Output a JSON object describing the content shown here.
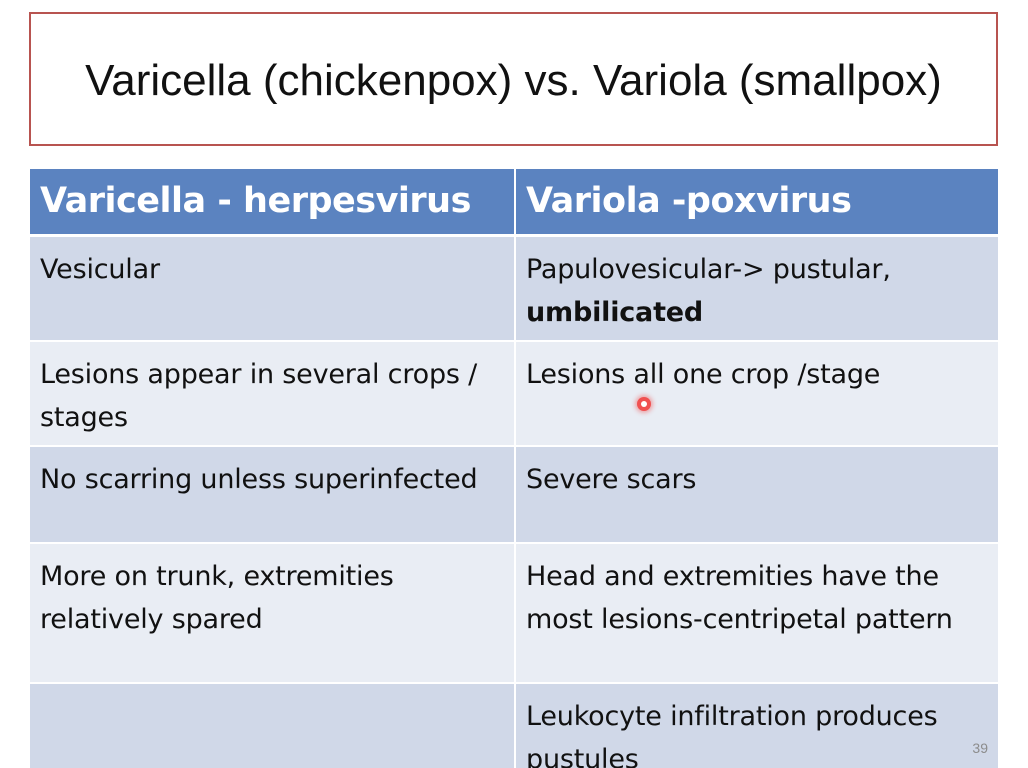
{
  "slide": {
    "title": "Varicella (chickenpox) vs. Variola (smallpox)",
    "page_number": "39"
  },
  "table": {
    "headers": [
      "Varicella - herpesvirus",
      "Variola -poxvirus"
    ],
    "rows": [
      {
        "left": "Vesicular",
        "right": "Papulovesicular-> pustular,",
        "right_bold": "umbilicated"
      },
      {
        "left": "Lesions appear in several crops / stages",
        "right": "Lesions all one crop /stage"
      },
      {
        "left": "No scarring unless superinfected",
        "right": "Severe scars"
      },
      {
        "left": "More on trunk, extremities relatively spared",
        "right": "Head and extremities have the most lesions-centripetal pattern"
      },
      {
        "left": "",
        "right": "Leukocyte infiltration produces pustules"
      }
    ]
  },
  "colors": {
    "header_bg": "#5b83c0",
    "row_odd_bg": "#d0d8e8",
    "row_even_bg": "#e9edf4",
    "title_border": "#b85450"
  }
}
